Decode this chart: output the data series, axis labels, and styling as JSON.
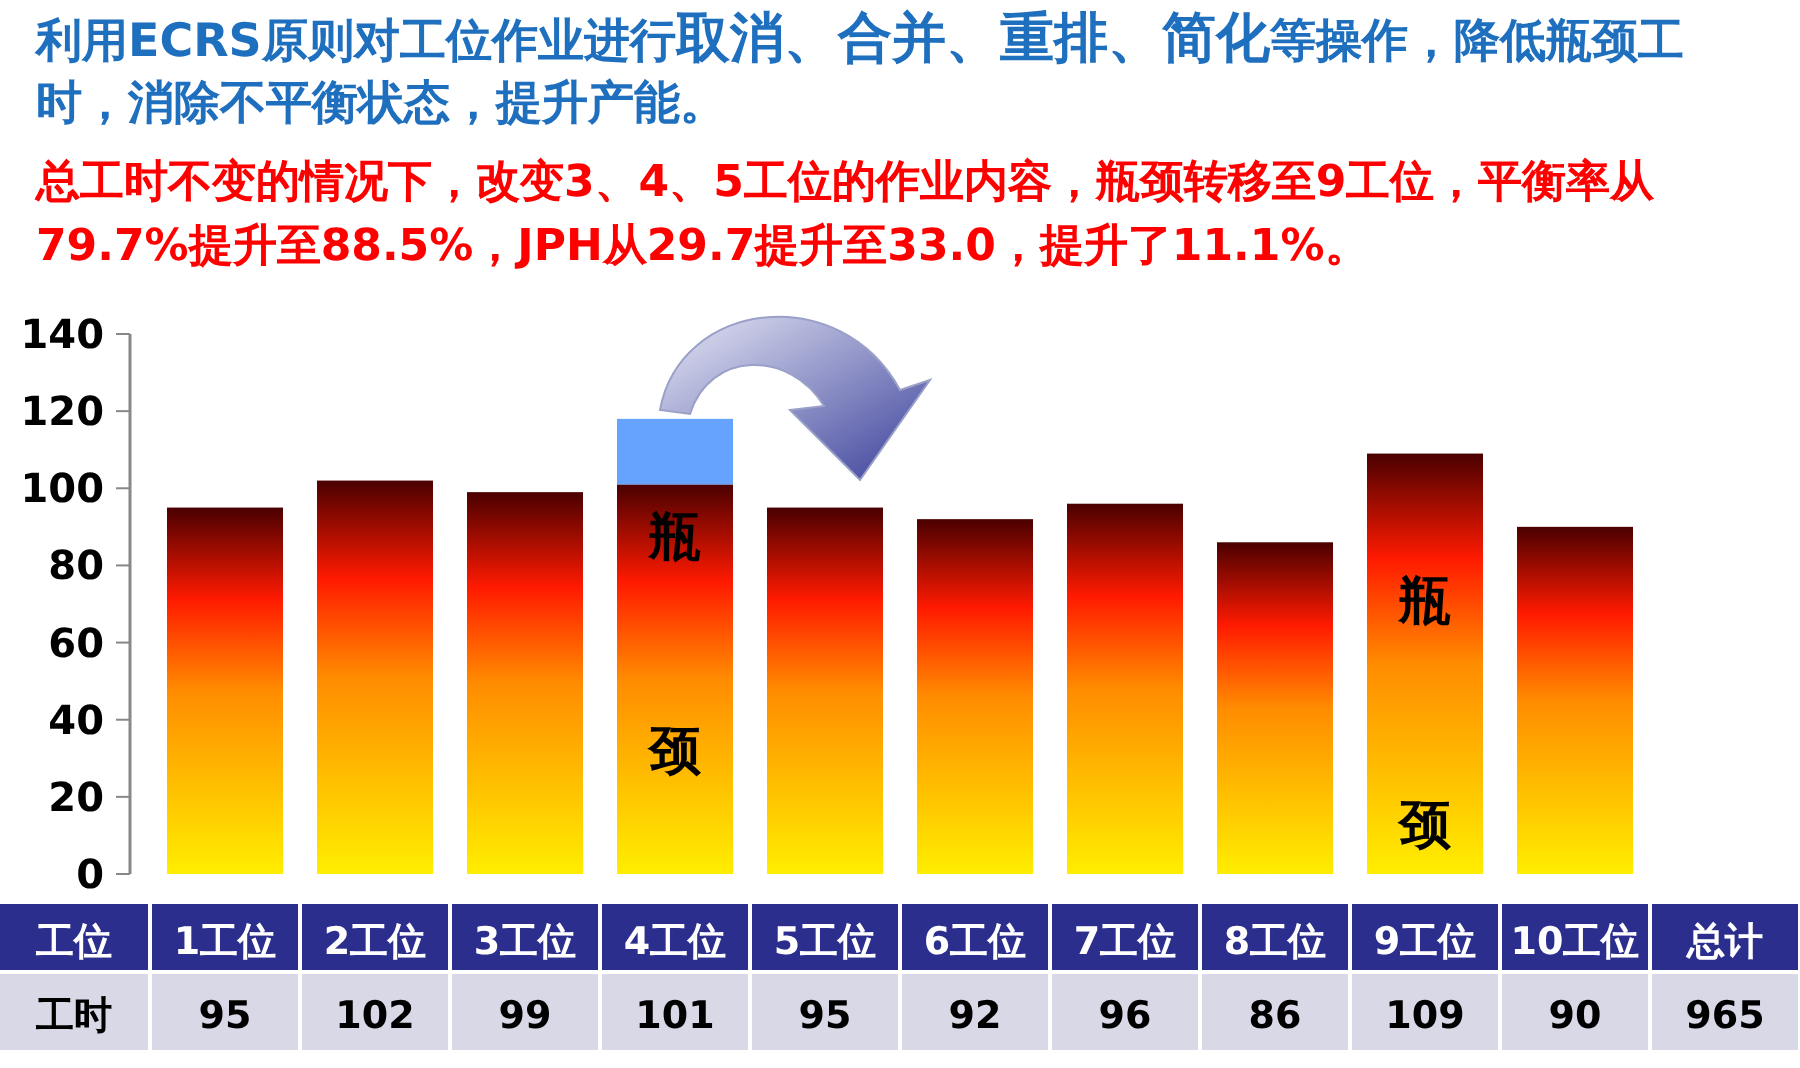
{
  "chart_data": {
    "type": "bar",
    "title": "利用ECRS原则对工位作业进行**取消、合并、重排、简化**等操作，降低瓶颈工时，消除不平衡状态，提升产能。",
    "subtitle": "总工时不变的情况下，改变3、4、5工位的作业内容，瓶颈转移至9工位，平衡率从79.7%提升至88.5%，JPH从29.7提升至33.0，提升了11.1%。",
    "xlabel": "工位",
    "ylabel": "工时",
    "categories": [
      "1工位",
      "2工位",
      "3工位",
      "4工位",
      "5工位",
      "6工位",
      "7工位",
      "8工位",
      "9工位",
      "10工位"
    ],
    "stacked": true,
    "series": [
      {
        "color": "#ff1a00",
        "values": [
          95,
          102,
          99,
          101,
          95,
          92,
          96,
          86,
          109,
          90
        ],
        "value_labels": [
          "95",
          "102",
          "99",
          "101",
          "95",
          "92",
          "96",
          "86",
          "109",
          "90"
        ]
      },
      {
        "color": "#66a3ff",
        "values": [
          null,
          null,
          null,
          17,
          null,
          null,
          null,
          null,
          null,
          null
        ]
      }
    ],
    "ylim": [
      0,
      140
    ],
    "yticks": [
      0,
      20,
      40,
      60,
      80,
      100,
      120,
      140
    ],
    "annotations": [
      "瓶",
      "颈",
      "瓶",
      "颈",
      "总计",
      "965"
    ]
  }
}
